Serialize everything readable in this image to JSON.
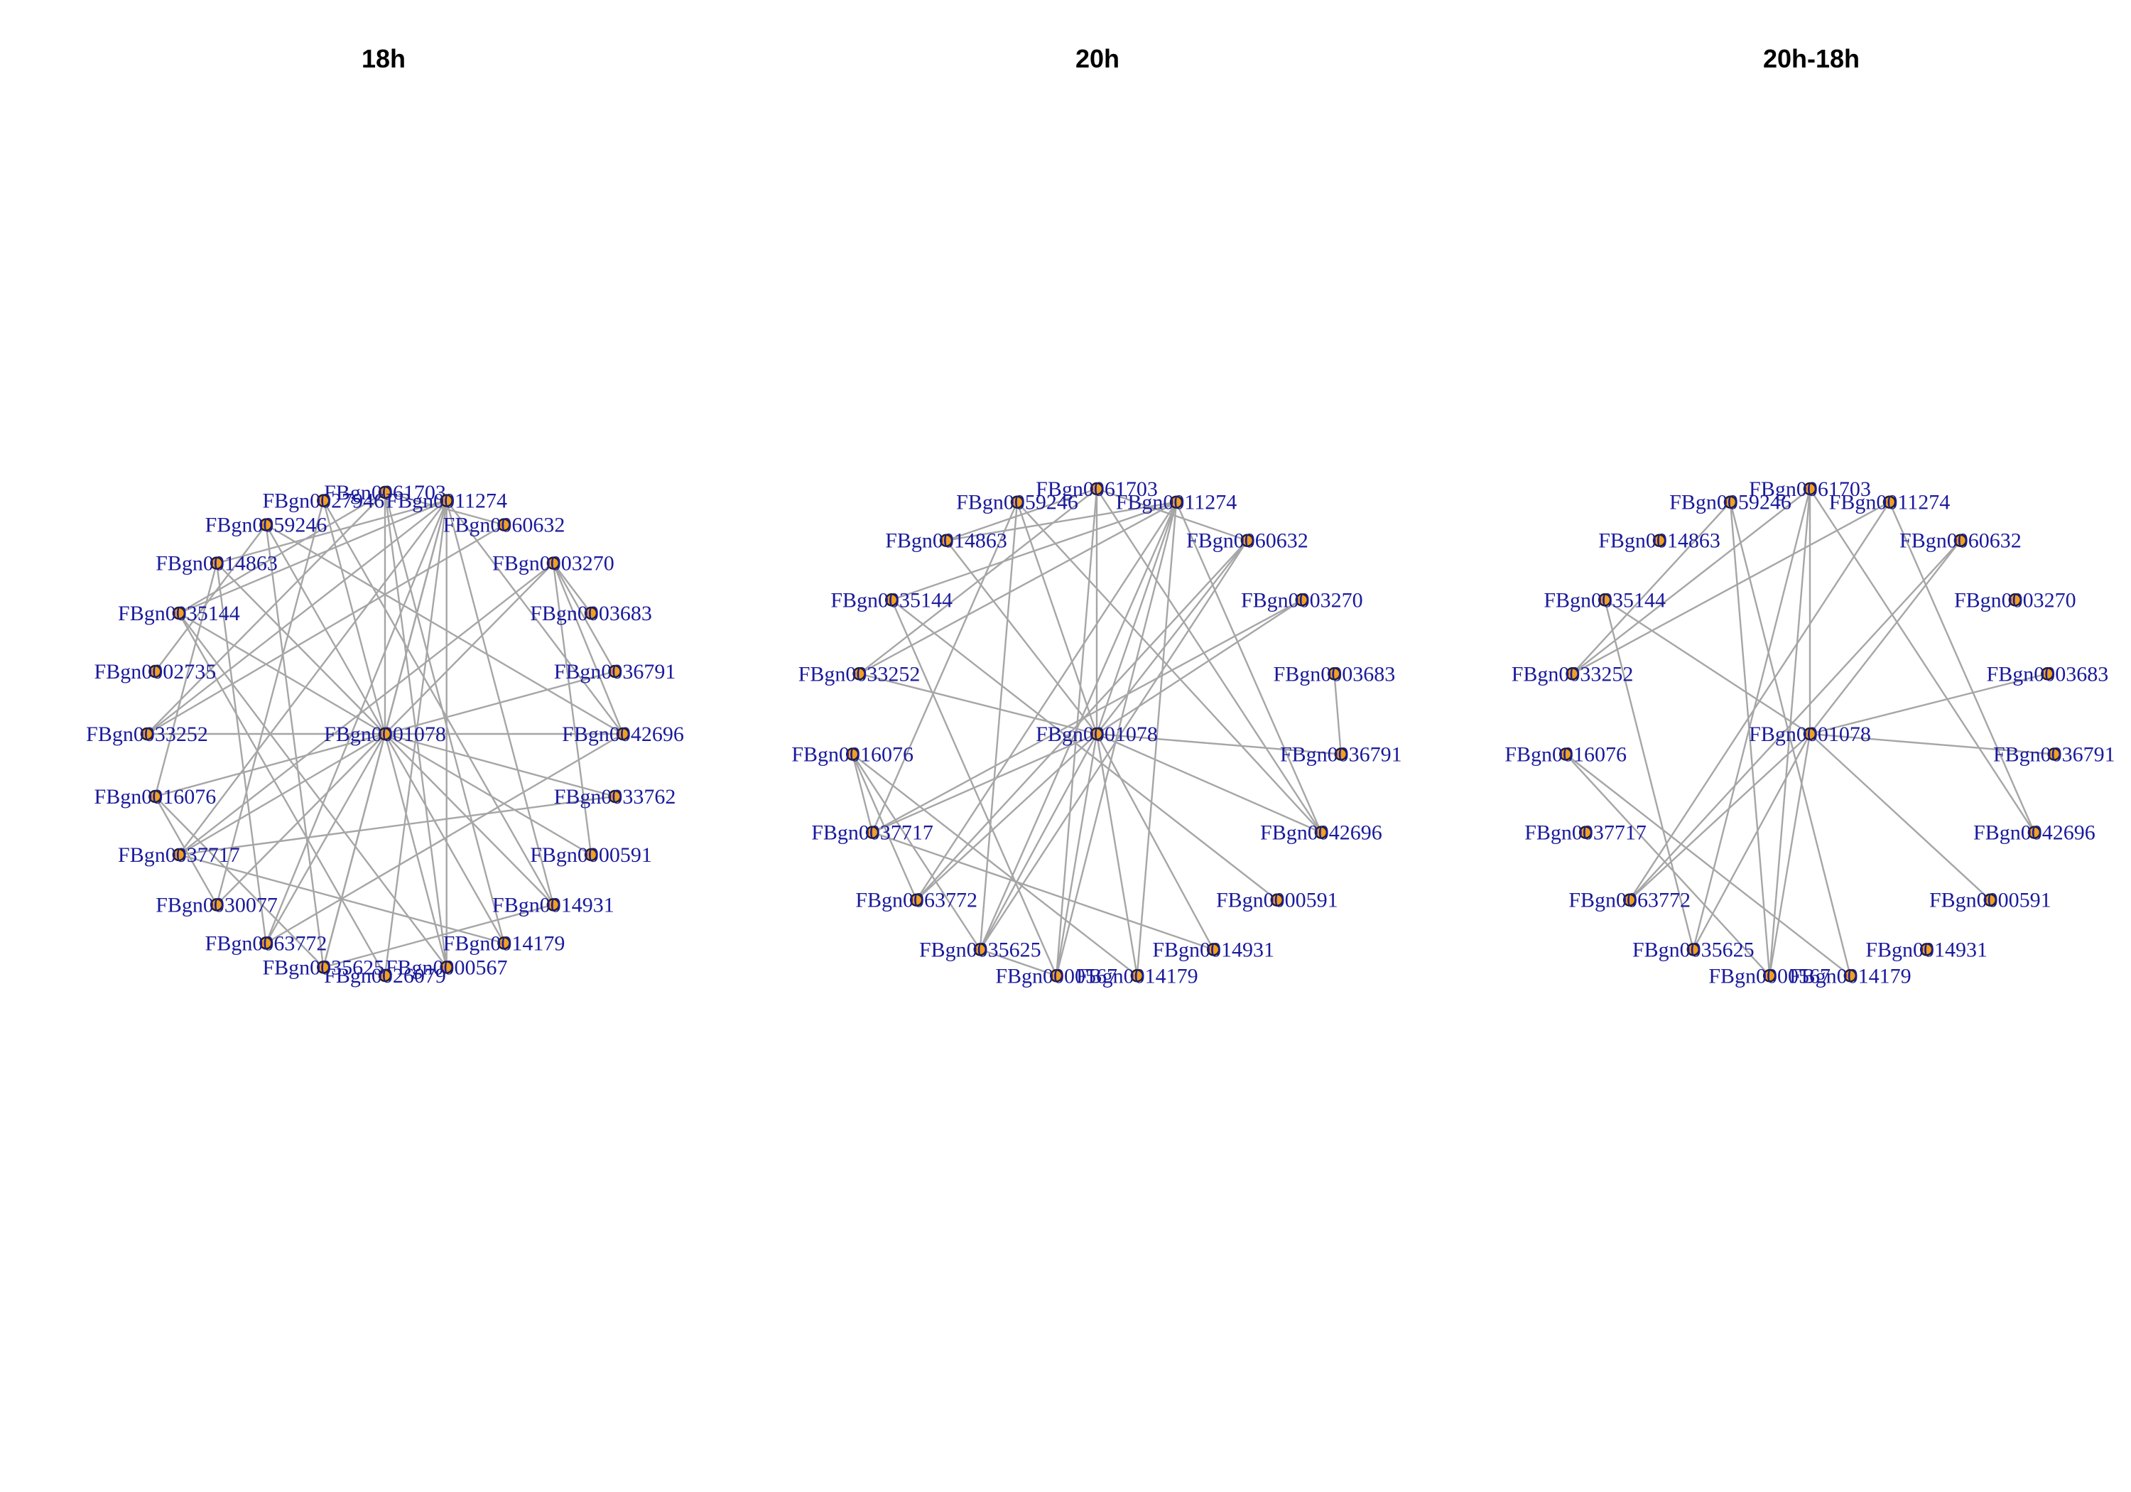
{
  "colors": {
    "edge": "#a6a6a6",
    "node_fill": "#f0a022",
    "node_stroke": "#222222",
    "label": "#1a1a9c"
  },
  "panels": [
    {
      "id": "panel-18h",
      "title": "18h",
      "center": "FBgn0001078",
      "ring": [
        "FBgn0061703",
        "FBgn0011274",
        "FBgn0060632",
        "FBgn0003270",
        "FBgn0003683",
        "FBgn0036791",
        "FBgn0042696",
        "FBgn0033762",
        "FBgn0000591",
        "FBgn0014931",
        "FBgn0014179",
        "FBgn0000567",
        "FBgn0026079",
        "FBgn0035625",
        "FBgn0063772",
        "FBgn0030077",
        "FBgn0037717",
        "FBgn0016076",
        "FBgn0033252",
        "FBgn0002735",
        "FBgn0035144",
        "FBgn0014863",
        "FBgn0059246",
        "FBgn0027946"
      ],
      "edges": [
        [
          "FBgn0001078",
          "FBgn0061703"
        ],
        [
          "FBgn0001078",
          "FBgn0011274"
        ],
        [
          "FBgn0001078",
          "FBgn0003270"
        ],
        [
          "FBgn0001078",
          "FBgn0036791"
        ],
        [
          "FBgn0001078",
          "FBgn0042696"
        ],
        [
          "FBgn0001078",
          "FBgn0033762"
        ],
        [
          "FBgn0001078",
          "FBgn0000591"
        ],
        [
          "FBgn0001078",
          "FBgn0014931"
        ],
        [
          "FBgn0001078",
          "FBgn0014179"
        ],
        [
          "FBgn0001078",
          "FBgn0000567"
        ],
        [
          "FBgn0001078",
          "FBgn0035625"
        ],
        [
          "FBgn0001078",
          "FBgn0063772"
        ],
        [
          "FBgn0001078",
          "FBgn0030077"
        ],
        [
          "FBgn0001078",
          "FBgn0037717"
        ],
        [
          "FBgn0001078",
          "FBgn0016076"
        ],
        [
          "FBgn0001078",
          "FBgn0033252"
        ],
        [
          "FBgn0001078",
          "FBgn0035144"
        ],
        [
          "FBgn0001078",
          "FBgn0014863"
        ],
        [
          "FBgn0001078",
          "FBgn0059246"
        ],
        [
          "FBgn0001078",
          "FBgn0027946"
        ],
        [
          "FBgn0011274",
          "FBgn0033252"
        ],
        [
          "FBgn0011274",
          "FBgn0035144"
        ],
        [
          "FBgn0011274",
          "FBgn0014863"
        ],
        [
          "FBgn0011274",
          "FBgn0063772"
        ],
        [
          "FBgn0011274",
          "FBgn0035625"
        ],
        [
          "FBgn0011274",
          "FBgn0026079"
        ],
        [
          "FBgn0011274",
          "FBgn0042696"
        ],
        [
          "FBgn0011274",
          "FBgn0037717"
        ],
        [
          "FBgn0011274",
          "FBgn0000567"
        ],
        [
          "FBgn0061703",
          "FBgn0035144"
        ],
        [
          "FBgn0061703",
          "FBgn0014179"
        ],
        [
          "FBgn0061703",
          "FBgn0060632"
        ],
        [
          "FBgn0061703",
          "FBgn0033252"
        ],
        [
          "FBgn0003270",
          "FBgn0036791"
        ],
        [
          "FBgn0003270",
          "FBgn0003683"
        ],
        [
          "FBgn0003270",
          "FBgn0042696"
        ],
        [
          "FBgn0003270",
          "FBgn0037717"
        ],
        [
          "FBgn0003270",
          "FBgn0000591"
        ],
        [
          "FBgn0042696",
          "FBgn0063772"
        ],
        [
          "FBgn0042696",
          "FBgn0059246"
        ],
        [
          "FBgn0033762",
          "FBgn0037717"
        ],
        [
          "FBgn0014931",
          "FBgn0035625"
        ],
        [
          "FBgn0014931",
          "FBgn0011274"
        ],
        [
          "FBgn0016076",
          "FBgn0014863"
        ],
        [
          "FBgn0016076",
          "FBgn0035625"
        ],
        [
          "FBgn0016076",
          "FBgn0030077"
        ],
        [
          "FBgn0035144",
          "FBgn0000567"
        ],
        [
          "FBgn0035144",
          "FBgn0026079"
        ],
        [
          "FBgn0014863",
          "FBgn0063772"
        ],
        [
          "FBgn0059246",
          "FBgn0035625"
        ],
        [
          "FBgn0027946",
          "FBgn0014931"
        ],
        [
          "FBgn0027946",
          "FBgn0030077"
        ],
        [
          "FBgn0060632",
          "FBgn0033252"
        ],
        [
          "FBgn0002735",
          "FBgn0059246"
        ],
        [
          "FBgn0037717",
          "FBgn0014179"
        ],
        [
          "FBgn0061703",
          "FBgn0000567"
        ]
      ]
    },
    {
      "id": "panel-20h",
      "title": "20h",
      "center": "FBgn0001078",
      "ring": [
        "FBgn0061703",
        "FBgn0011274",
        "FBgn0060632",
        "FBgn0003270",
        "FBgn0003683",
        "FBgn0036791",
        "FBgn0042696",
        "FBgn0000591",
        "FBgn0014931",
        "FBgn0014179",
        "FBgn0000567",
        "FBgn0035625",
        "FBgn0063772",
        "FBgn0037717",
        "FBgn0016076",
        "FBgn0033252",
        "FBgn0035144",
        "FBgn0014863",
        "FBgn0059246"
      ],
      "edges": [
        [
          "FBgn0001078",
          "FBgn0061703"
        ],
        [
          "FBgn0001078",
          "FBgn0011274"
        ],
        [
          "FBgn0001078",
          "FBgn0060632"
        ],
        [
          "FBgn0001078",
          "FBgn0003270"
        ],
        [
          "FBgn0001078",
          "FBgn0036791"
        ],
        [
          "FBgn0001078",
          "FBgn0042696"
        ],
        [
          "FBgn0001078",
          "FBgn0014931"
        ],
        [
          "FBgn0001078",
          "FBgn0014179"
        ],
        [
          "FBgn0001078",
          "FBgn0000567"
        ],
        [
          "FBgn0001078",
          "FBgn0035625"
        ],
        [
          "FBgn0001078",
          "FBgn0063772"
        ],
        [
          "FBgn0001078",
          "FBgn0037717"
        ],
        [
          "FBgn0001078",
          "FBgn0033252"
        ],
        [
          "FBgn0001078",
          "FBgn0059246"
        ],
        [
          "FBgn0001078",
          "FBgn0014863"
        ],
        [
          "FBgn0011274",
          "FBgn0035144"
        ],
        [
          "FBgn0011274",
          "FBgn0033252"
        ],
        [
          "FBgn0011274",
          "FBgn0063772"
        ],
        [
          "FBgn0011274",
          "FBgn0035625"
        ],
        [
          "FBgn0011274",
          "FBgn0000567"
        ],
        [
          "FBgn0011274",
          "FBgn0014179"
        ],
        [
          "FBgn0011274",
          "FBgn0042696"
        ],
        [
          "FBgn0061703",
          "FBgn0014863"
        ],
        [
          "FBgn0061703",
          "FBgn0000567"
        ],
        [
          "FBgn0061703",
          "FBgn0042696"
        ],
        [
          "FBgn0061703",
          "FBgn0060632"
        ],
        [
          "FBgn0059246",
          "FBgn0035625"
        ],
        [
          "FBgn0059246",
          "FBgn0042696"
        ],
        [
          "FBgn0059246",
          "FBgn0037717"
        ],
        [
          "FBgn0003270",
          "FBgn0037717"
        ],
        [
          "FBgn0003683",
          "FBgn0036791"
        ],
        [
          "FBgn0060632",
          "FBgn0035625"
        ],
        [
          "FBgn0060632",
          "FBgn0063772"
        ],
        [
          "FBgn0016076",
          "FBgn0037717"
        ],
        [
          "FBgn0016076",
          "FBgn0063772"
        ],
        [
          "FBgn0016076",
          "FBgn0014179"
        ],
        [
          "FBgn0016076",
          "FBgn0035625"
        ],
        [
          "FBgn0035144",
          "FBgn0000591"
        ],
        [
          "FBgn0035144",
          "FBgn0000567"
        ],
        [
          "FBgn0037717",
          "FBgn0014931"
        ],
        [
          "FBgn0035625",
          "FBgn0000567"
        ],
        [
          "FBgn0033252",
          "FBgn0061703"
        ],
        [
          "FBgn0014863",
          "FBgn0011274"
        ]
      ]
    },
    {
      "id": "panel-20h-18h",
      "title": "20h-18h",
      "center": "FBgn0001078",
      "ring": [
        "FBgn0061703",
        "FBgn0011274",
        "FBgn0060632",
        "FBgn0003270",
        "FBgn0003683",
        "FBgn0036791",
        "FBgn0042696",
        "FBgn0000591",
        "FBgn0014931",
        "FBgn0014179",
        "FBgn0000567",
        "FBgn0035625",
        "FBgn0063772",
        "FBgn0037717",
        "FBgn0016076",
        "FBgn0033252",
        "FBgn0035144",
        "FBgn0014863",
        "FBgn0059246"
      ],
      "edges": [
        [
          "FBgn0001078",
          "FBgn0060632"
        ],
        [
          "FBgn0001078",
          "FBgn0036791"
        ],
        [
          "FBgn0001078",
          "FBgn0000591"
        ],
        [
          "FBgn0001078",
          "FBgn0000567"
        ],
        [
          "FBgn0001078",
          "FBgn0035625"
        ],
        [
          "FBgn0001078",
          "FBgn0063772"
        ],
        [
          "FBgn0001078",
          "FBgn0035144"
        ],
        [
          "FBgn0001078",
          "FBgn0061703"
        ],
        [
          "FBgn0001078",
          "FBgn0003683"
        ],
        [
          "FBgn0011274",
          "FBgn0033252"
        ],
        [
          "FBgn0011274",
          "FBgn0042696"
        ],
        [
          "FBgn0061703",
          "FBgn0035625"
        ],
        [
          "FBgn0061703",
          "FBgn0000567"
        ],
        [
          "FBgn0061703",
          "FBgn0042696"
        ],
        [
          "FBgn0059246",
          "FBgn0000567"
        ],
        [
          "FBgn0059246",
          "FBgn0014179"
        ],
        [
          "FBgn0059246",
          "FBgn0033252"
        ],
        [
          "FBgn0016076",
          "FBgn0014179"
        ],
        [
          "FBgn0016076",
          "FBgn0000567"
        ],
        [
          "FBgn0060632",
          "FBgn0063772"
        ],
        [
          "FBgn0035144",
          "FBgn0035625"
        ],
        [
          "FBgn0033252",
          "FBgn0061703"
        ],
        [
          "FBgn0063772",
          "FBgn0011274"
        ]
      ]
    }
  ]
}
